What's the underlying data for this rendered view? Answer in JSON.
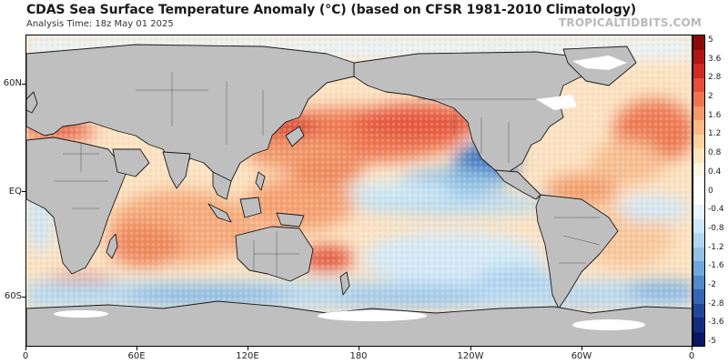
{
  "header": {
    "title": "CDAS Sea Surface Temperature Anomaly (°C) (based on CFSR 1981-2010 Climatology)",
    "analysis_time": "Analysis Time: 18z May 01 2025",
    "brand": "TROPICALTIDBITS.COM"
  },
  "axes": {
    "latitude_labels": [
      {
        "label": "60N"
      },
      {
        "label": "EQ"
      },
      {
        "label": "60S"
      }
    ],
    "longitude_labels": [
      {
        "label": "0"
      },
      {
        "label": "60E"
      },
      {
        "label": "120E"
      },
      {
        "label": "180"
      },
      {
        "label": "120W"
      },
      {
        "label": "60W"
      },
      {
        "label": "0"
      }
    ]
  },
  "colorbar": {
    "labels": [
      "5",
      "3.6",
      "2.8",
      "2",
      "1.6",
      "1.2",
      "0.8",
      "0.4",
      "0",
      "-0.4",
      "-0.8",
      "-1.2",
      "-1.6",
      "-2",
      "-2.8",
      "-3.6",
      "-5"
    ],
    "colors_top_to_bottom": [
      "#8b0a0a",
      "#b31515",
      "#d22b25",
      "#e4503a",
      "#ef7550",
      "#f59a6a",
      "#f9b985",
      "#fcd2a0",
      "#fde6bf",
      "#fff6e0",
      "#ffffff",
      "#ffffff",
      "#e6f4fc",
      "#cde8f7",
      "#b0d7f0",
      "#91c2e6",
      "#6ea8da",
      "#4f8ac9",
      "#3468b4",
      "#21489b",
      "#142d80",
      "#0a1766"
    ]
  },
  "map": {
    "land_color": "#bfbfbf",
    "ice_color": "#ffffff",
    "ocean_base_color": "#fdf0dc",
    "anomaly_regions": [
      {
        "name": "north-pacific-warm",
        "level": 1.6
      },
      {
        "name": "north-atlantic-warm",
        "level": 1.6
      },
      {
        "name": "indian-ocean-warm",
        "level": 0.8
      },
      {
        "name": "western-pacific-warm",
        "level": 1.2
      },
      {
        "name": "east-pacific-cool",
        "level": -0.8
      },
      {
        "name": "california-cool",
        "level": -2.0
      },
      {
        "name": "southern-ocean-cool",
        "level": -1.2
      },
      {
        "name": "south-pacific-cool",
        "level": -0.8
      },
      {
        "name": "tasman-warm",
        "level": 2.0
      },
      {
        "name": "agulhas-warm",
        "level": 2.0
      },
      {
        "name": "south-atlantic-mixed",
        "level": 0.4
      },
      {
        "name": "mediterranean-warm",
        "level": 1.6
      }
    ]
  }
}
